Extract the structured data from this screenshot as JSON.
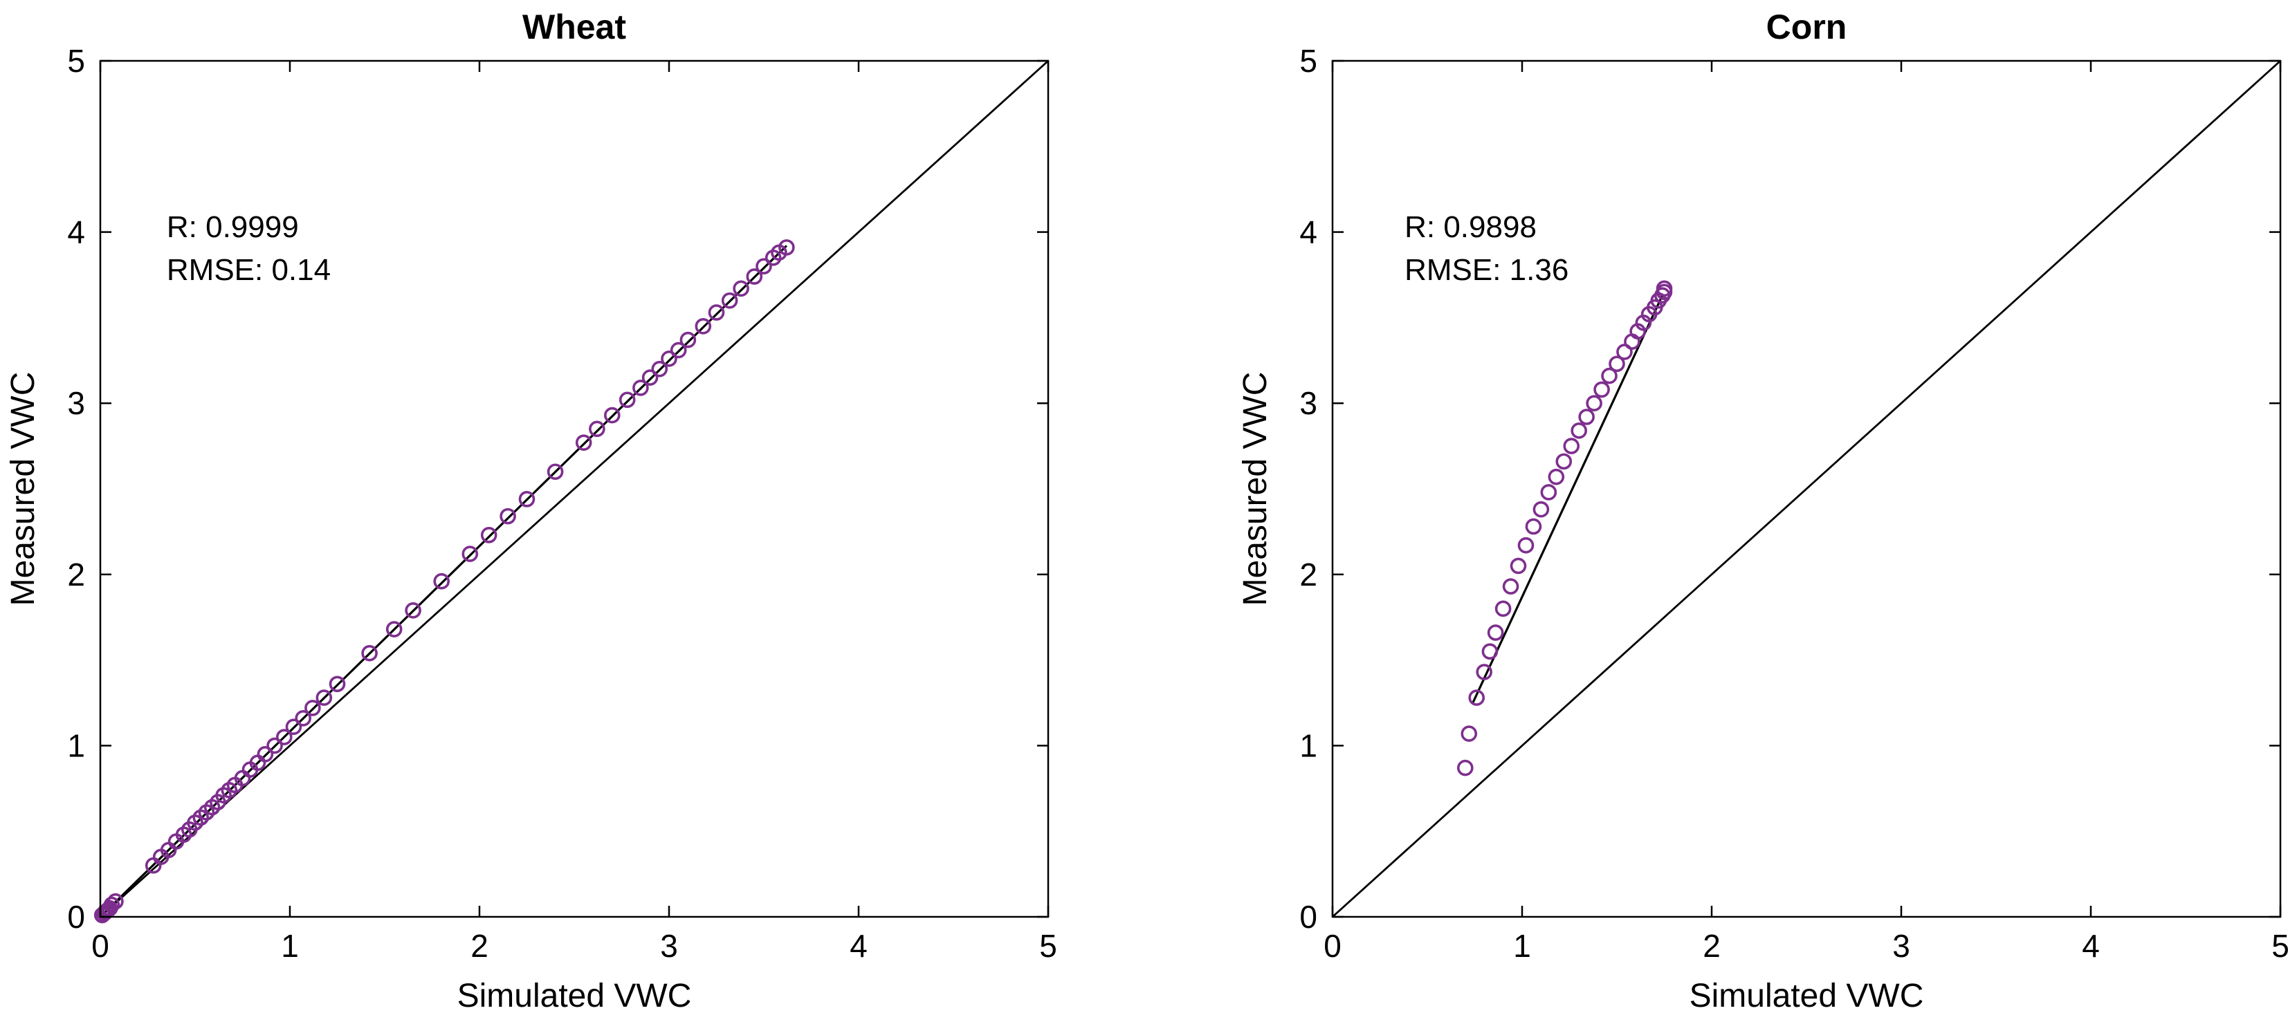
{
  "figure": {
    "background": "#ffffff"
  },
  "colors": {
    "marker": "#7E2F8E",
    "identity_line": "#000000",
    "fit_line": "#000000",
    "axis": "#000000",
    "text": "#000000"
  },
  "chart_data": [
    {
      "type": "scatter",
      "title": "Wheat",
      "xlabel": "Simulated VWC",
      "ylabel": "Measured VWC",
      "xlim": [
        0,
        5
      ],
      "ylim": [
        0,
        5
      ],
      "xticks": [
        0,
        1,
        2,
        3,
        4,
        5
      ],
      "yticks": [
        0,
        1,
        2,
        3,
        4,
        5
      ],
      "xtick_labels": [
        "0",
        "1",
        "2",
        "3",
        "4",
        "5"
      ],
      "ytick_labels": [
        "0",
        "1",
        "2",
        "3",
        "4",
        "5"
      ],
      "grid": false,
      "annotation_lines": [
        "R: 0.9999",
        "RMSE: 0.14"
      ],
      "annotation_pos": [
        0.35,
        3.97
      ],
      "identity_line": {
        "x": [
          0,
          5
        ],
        "y": [
          0,
          5
        ]
      },
      "fit_line": {
        "x": [
          0,
          3.62
        ],
        "y": [
          0,
          3.92
        ]
      },
      "points": {
        "x": [
          0.01,
          0.02,
          0.03,
          0.04,
          0.05,
          0.06,
          0.08,
          0.28,
          0.32,
          0.36,
          0.4,
          0.44,
          0.47,
          0.5,
          0.53,
          0.56,
          0.59,
          0.62,
          0.65,
          0.68,
          0.71,
          0.75,
          0.79,
          0.83,
          0.87,
          0.92,
          0.97,
          1.02,
          1.07,
          1.12,
          1.18,
          1.25,
          1.42,
          1.55,
          1.65,
          1.8,
          1.95,
          2.05,
          2.15,
          2.25,
          2.4,
          2.55,
          2.62,
          2.7,
          2.78,
          2.85,
          2.9,
          2.95,
          3.0,
          3.05,
          3.1,
          3.18,
          3.25,
          3.32,
          3.38,
          3.45,
          3.5,
          3.55,
          3.58,
          3.62
        ],
        "y": [
          0.01,
          0.02,
          0.03,
          0.04,
          0.05,
          0.07,
          0.09,
          0.3,
          0.35,
          0.39,
          0.44,
          0.48,
          0.51,
          0.55,
          0.58,
          0.61,
          0.64,
          0.67,
          0.71,
          0.74,
          0.77,
          0.81,
          0.86,
          0.9,
          0.95,
          1.0,
          1.05,
          1.11,
          1.16,
          1.22,
          1.28,
          1.36,
          1.54,
          1.68,
          1.79,
          1.96,
          2.12,
          2.23,
          2.34,
          2.44,
          2.6,
          2.77,
          2.85,
          2.93,
          3.02,
          3.09,
          3.15,
          3.2,
          3.26,
          3.31,
          3.37,
          3.45,
          3.53,
          3.6,
          3.67,
          3.74,
          3.8,
          3.85,
          3.88,
          3.91
        ]
      }
    },
    {
      "type": "scatter",
      "title": "Corn",
      "xlabel": "Simulated VWC",
      "ylabel": "Measured VWC",
      "xlim": [
        0,
        5
      ],
      "ylim": [
        0,
        5
      ],
      "xticks": [
        0,
        1,
        2,
        3,
        4,
        5
      ],
      "yticks": [
        0,
        1,
        2,
        3,
        4,
        5
      ],
      "xtick_labels": [
        "0",
        "1",
        "2",
        "3",
        "4",
        "5"
      ],
      "ytick_labels": [
        "0",
        "1",
        "2",
        "3",
        "4",
        "5"
      ],
      "grid": false,
      "annotation_lines": [
        "R: 0.9898",
        "RMSE: 1.36"
      ],
      "annotation_pos": [
        0.38,
        3.97
      ],
      "identity_line": {
        "x": [
          0,
          5
        ],
        "y": [
          0,
          5
        ]
      },
      "fit_line": {
        "x": [
          0.74,
          1.74
        ],
        "y": [
          1.25,
          3.63
        ]
      },
      "points": {
        "x": [
          0.7,
          0.72,
          0.76,
          0.8,
          0.83,
          0.86,
          0.9,
          0.94,
          0.98,
          1.02,
          1.06,
          1.1,
          1.14,
          1.18,
          1.22,
          1.26,
          1.3,
          1.34,
          1.38,
          1.42,
          1.46,
          1.5,
          1.54,
          1.58,
          1.61,
          1.64,
          1.67,
          1.7,
          1.72,
          1.74,
          1.75,
          1.75
        ],
        "y": [
          0.87,
          1.07,
          1.28,
          1.43,
          1.55,
          1.66,
          1.8,
          1.93,
          2.05,
          2.17,
          2.28,
          2.38,
          2.48,
          2.57,
          2.66,
          2.75,
          2.84,
          2.92,
          3.0,
          3.08,
          3.16,
          3.23,
          3.3,
          3.36,
          3.42,
          3.47,
          3.52,
          3.56,
          3.6,
          3.63,
          3.65,
          3.67
        ]
      }
    }
  ]
}
